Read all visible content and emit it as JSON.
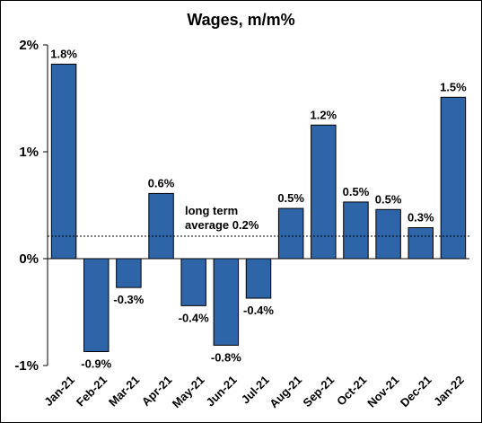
{
  "chart_data": {
    "type": "bar",
    "title": "Wages, m/m%",
    "categories": [
      "Jan-21",
      "Feb-21",
      "Mar-21",
      "Apr-21",
      "May-21",
      "Jun-21",
      "Jul-21",
      "Aug-21",
      "Sep-21",
      "Oct-21",
      "Nov-21",
      "Dec-21",
      "Jan-22"
    ],
    "values": [
      1.82,
      -0.87,
      -0.27,
      0.61,
      -0.44,
      -0.81,
      -0.37,
      0.47,
      1.25,
      0.53,
      0.46,
      0.29,
      1.51
    ],
    "data_labels": [
      "1.8%",
      "-0.9%",
      "-0.3%",
      "0.6%",
      "-0.4%",
      "-0.8%",
      "-0.4%",
      "0.5%",
      "1.2%",
      "0.5%",
      "0.5%",
      "0.3%",
      "1.5%"
    ],
    "ylim": [
      -1,
      2
    ],
    "yticks": [
      -1,
      0,
      1,
      2
    ],
    "ytick_labels": [
      "-1%",
      "0%",
      "1%",
      "2%"
    ],
    "bar_color": "#2E64A8",
    "reference_line": {
      "value": 0.21,
      "label_line1": "long term",
      "label_line2": "average 0.2%"
    },
    "grid": false,
    "legend": "none"
  }
}
